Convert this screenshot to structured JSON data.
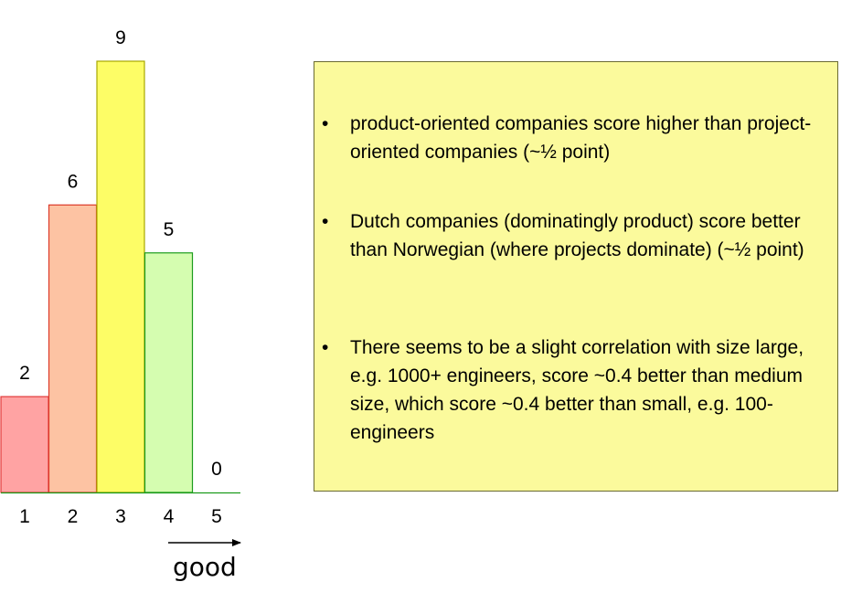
{
  "chart_data": {
    "type": "bar",
    "categories": [
      "1",
      "2",
      "3",
      "4",
      "5"
    ],
    "values": [
      2,
      6,
      9,
      5,
      0
    ],
    "data_labels": [
      "2",
      "6",
      "9",
      "5",
      "0"
    ],
    "colors": [
      "#ffa3a3",
      "#fdc3a3",
      "#fdfd66",
      "#d5fdb0",
      "#d5fdb0"
    ],
    "edge_colors": [
      "#e23a3a",
      "#dc3a2a",
      "#a8a800",
      "#1c9c1c",
      "#1c9c1c"
    ],
    "ylim": [
      0,
      9
    ],
    "grid": false,
    "annotation": "good"
  },
  "notes": {
    "background": "#fbfa9c",
    "bullet_symbol": "•",
    "items": [
      "product-oriented companies score higher than project-oriented companies (~½ point)",
      "Dutch companies (dominatingly product) score better than Norwegian (where projects dominate) (~½ point)",
      "There seems to be a slight correlation with size large, e.g. 1000+ engineers, score ~0.4 better than medium size, which score ~0.4 better than small, e.g. 100- engineers"
    ]
  }
}
